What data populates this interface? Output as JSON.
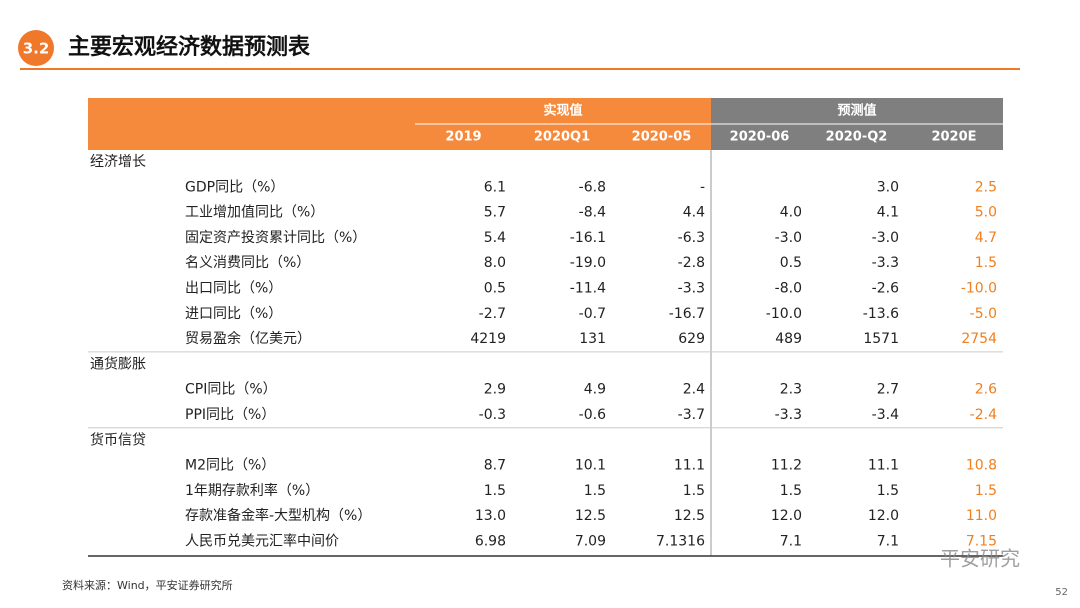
{
  "header": {
    "badge": "3.2",
    "title": "主要宏观经济数据预测表"
  },
  "table": {
    "groups": [
      "实现值",
      "预测值"
    ],
    "columns": [
      "2019",
      "2020Q1",
      "2020-05",
      "2020-06",
      "2020-Q2",
      "2020E"
    ],
    "sections": [
      {
        "name": "经济增长",
        "rows": [
          {
            "label": "GDP同比（%）",
            "values": [
              "6.1",
              "-6.8",
              "-",
              null,
              "3.0",
              "2.5"
            ]
          },
          {
            "label": "工业增加值同比（%）",
            "values": [
              "5.7",
              "-8.4",
              "4.4",
              "4.0",
              "4.1",
              "5.0"
            ]
          },
          {
            "label": "固定资产投资累计同比（%）",
            "values": [
              "5.4",
              "-16.1",
              "-6.3",
              "-3.0",
              "-3.0",
              "4.7"
            ]
          },
          {
            "label": "名义消费同比（%）",
            "values": [
              "8.0",
              "-19.0",
              "-2.8",
              "0.5",
              "-3.3",
              "1.5"
            ]
          },
          {
            "label": "出口同比（%）",
            "values": [
              "0.5",
              "-11.4",
              "-3.3",
              "-8.0",
              "-2.6",
              "-10.0"
            ]
          },
          {
            "label": "进口同比（%）",
            "values": [
              "-2.7",
              "-0.7",
              "-16.7",
              "-10.0",
              "-13.6",
              "-5.0"
            ]
          },
          {
            "label": "贸易盈余（亿美元）",
            "values": [
              "4219",
              "131",
              "629",
              "489",
              "1571",
              "2754"
            ]
          }
        ]
      },
      {
        "name": "通货膨胀",
        "rows": [
          {
            "label": "CPI同比（%）",
            "values": [
              "2.9",
              "4.9",
              "2.4",
              "2.3",
              "2.7",
              "2.6"
            ]
          },
          {
            "label": "PPI同比（%）",
            "values": [
              "-0.3",
              "-0.6",
              "-3.7",
              "-3.3",
              "-3.4",
              "-2.4"
            ]
          }
        ]
      },
      {
        "name": "货币信贷",
        "rows": [
          {
            "label": "M2同比（%）",
            "values": [
              "8.7",
              "10.1",
              "11.1",
              "11.2",
              "11.1",
              "10.8"
            ]
          },
          {
            "label": "1年期存款利率（%）",
            "values": [
              "1.5",
              "1.5",
              "1.5",
              "1.5",
              "1.5",
              "1.5"
            ]
          },
          {
            "label": "存款准备金率-大型机构（%）",
            "values": [
              "13.0",
              "12.5",
              "12.5",
              "12.0",
              "12.0",
              "11.0"
            ]
          },
          {
            "label": "人民币兑美元汇率中间价",
            "values": [
              "6.98",
              "7.09",
              "7.1316",
              "7.1",
              "7.1",
              "7.15"
            ]
          }
        ]
      }
    ]
  },
  "footer": {
    "source": "资料来源：Wind，平安证券研究所",
    "page": "52",
    "watermark": "平安研究"
  }
}
